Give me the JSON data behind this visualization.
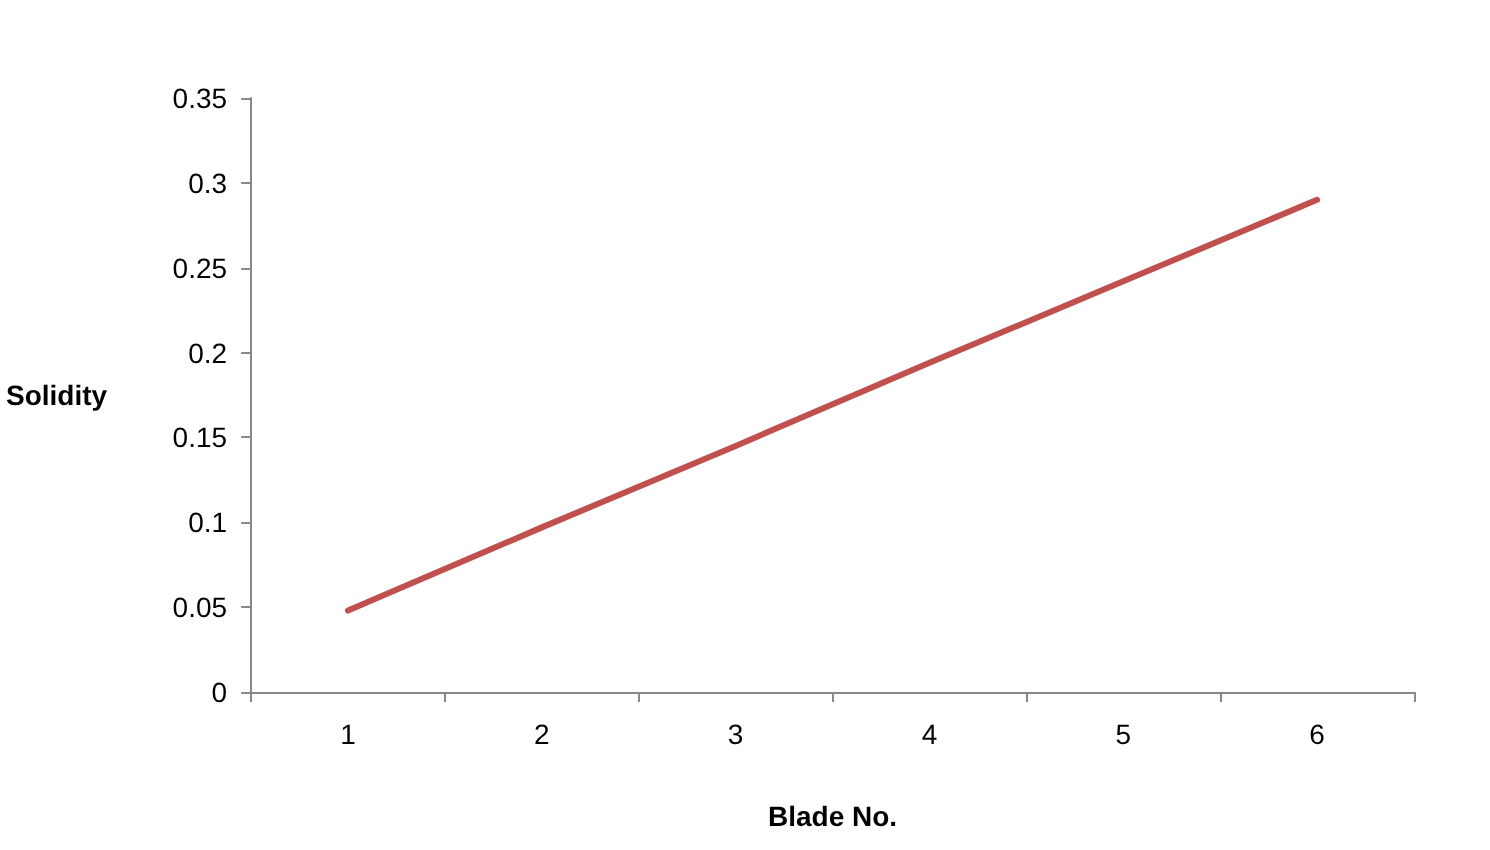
{
  "chart_data": {
    "type": "line",
    "xlabel": "Blade No.",
    "ylabel": "Solidity",
    "categories": [
      "1",
      "2",
      "3",
      "4",
      "5",
      "6"
    ],
    "series": [
      {
        "color": "#c0504d",
        "values": [
          0.048,
          0.097,
          0.145,
          0.194,
          0.242,
          0.29
        ]
      }
    ],
    "ylim": [
      0,
      0.35
    ],
    "yticks": [
      0,
      0.05,
      0.1,
      0.15,
      0.2,
      0.25,
      0.3,
      0.35
    ],
    "grid": false,
    "marker": "none",
    "line_style": "solid"
  }
}
